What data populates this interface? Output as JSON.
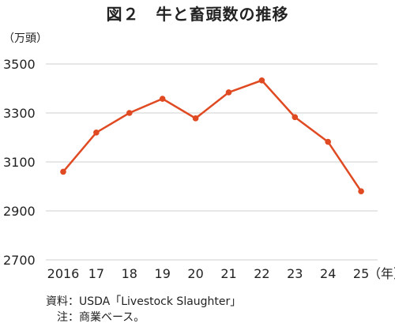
{
  "chart_data": {
    "type": "line",
    "title": "図２　牛と畜頭数の推移",
    "ylabel": "（万頭）",
    "xunit": "（年）",
    "categories": [
      "2016",
      "17",
      "18",
      "19",
      "20",
      "21",
      "22",
      "23",
      "24",
      "25"
    ],
    "series": [
      {
        "values": [
          3060,
          3220,
          3300,
          3358,
          3278,
          3384,
          3433,
          3283,
          3182,
          2980
        ]
      }
    ],
    "ylim": [
      2700,
      3500
    ],
    "yticks": [
      3500,
      3300,
      3100,
      2900,
      2700
    ],
    "grid": true,
    "line_color": "#e04a22",
    "grid_color": "#cfcfcf"
  },
  "notes": {
    "source": "資料：USDA「Livestock Slaughter」",
    "note": "　注：商業ベース。"
  }
}
